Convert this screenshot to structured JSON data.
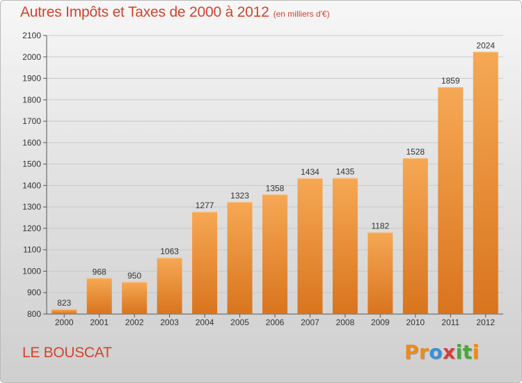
{
  "title": "Autres Impôts et Taxes de 2000 à 2012",
  "subtitle": "(en milliers d'€)",
  "commune": "LE BOUSCAT",
  "brand": {
    "letters": [
      {
        "char": "P",
        "color": "#f08a1a"
      },
      {
        "char": "r",
        "color": "#f08a1a"
      },
      {
        "char": "o",
        "color": "#3b8fd9"
      },
      {
        "char": "x",
        "color": "#d93b3b"
      },
      {
        "char": "i",
        "color": "#49a83a"
      },
      {
        "char": "t",
        "color": "#49a83a"
      },
      {
        "char": "i",
        "color": "#f08a1a"
      }
    ]
  },
  "colors": {
    "bar_light": "#f6a854",
    "bar_dark": "#d9741e",
    "title": "#d4422c",
    "gridline": "#c8c8c8"
  },
  "chart_data": {
    "type": "bar",
    "categories": [
      "2000",
      "2001",
      "2002",
      "2003",
      "2004",
      "2005",
      "2006",
      "2007",
      "2008",
      "2009",
      "2010",
      "2011",
      "2012"
    ],
    "values": [
      823,
      968,
      950,
      1063,
      1277,
      1323,
      1358,
      1434,
      1435,
      1182,
      1528,
      1859,
      2024
    ],
    "ylim": [
      800,
      2100
    ],
    "yticks": [
      800,
      900,
      1000,
      1100,
      1200,
      1300,
      1400,
      1500,
      1600,
      1700,
      1800,
      1900,
      2000,
      2100
    ],
    "grid": true,
    "legend": "none"
  }
}
